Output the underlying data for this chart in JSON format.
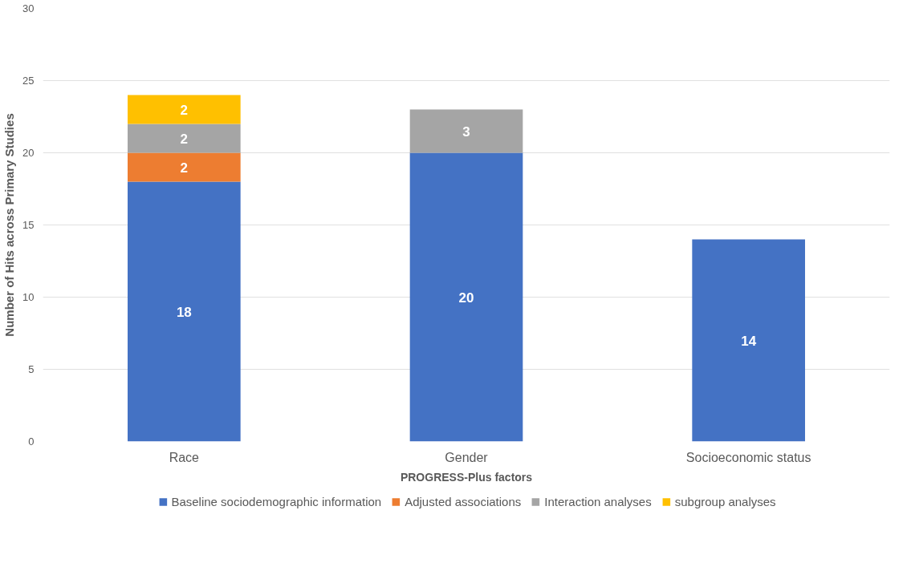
{
  "chart_data": {
    "type": "bar",
    "stacked": true,
    "xlabel": "PROGRESS-Plus factors",
    "ylabel": "Number of Hits across Primary Studies",
    "categories": [
      "Race",
      "Gender",
      "Socioeconomic status"
    ],
    "series": [
      {
        "name": "Baseline sociodemographic information",
        "color": "#4472c4",
        "values": [
          18,
          20,
          14
        ]
      },
      {
        "name": "Adjusted associations",
        "color": "#ed7d31",
        "values": [
          2,
          null,
          null
        ]
      },
      {
        "name": "Interaction analyses",
        "color": "#a5a5a5",
        "values": [
          2,
          3,
          null
        ]
      },
      {
        "name": "subgroup analyses",
        "color": "#ffc000",
        "values": [
          2,
          null,
          null
        ]
      }
    ],
    "ylim": [
      0,
      30
    ],
    "yticks": [
      0,
      5,
      10,
      15,
      20,
      25,
      30
    ],
    "grid": "y",
    "legend": "bottom",
    "data_labels": true
  }
}
